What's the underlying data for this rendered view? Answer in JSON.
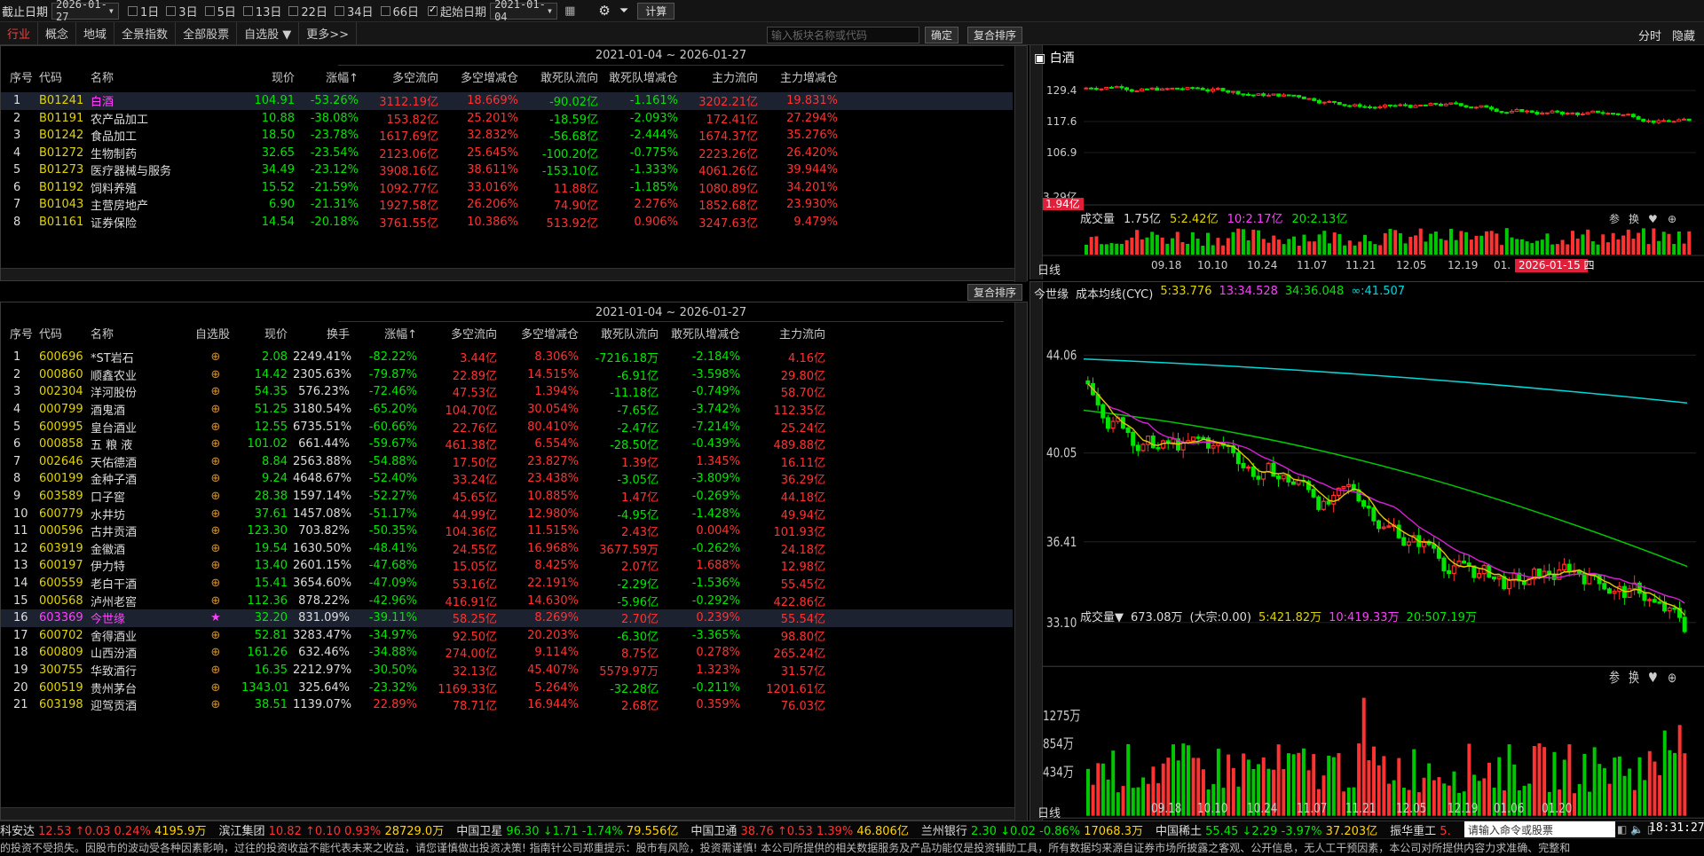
{
  "toolbar": {
    "end_date_label": "截止日期",
    "end_date": "2026-01-27",
    "periods": [
      {
        "label": "1日",
        "on": false
      },
      {
        "label": "3日",
        "on": false
      },
      {
        "label": "5日",
        "on": false
      },
      {
        "label": "13日",
        "on": false
      },
      {
        "label": "22日",
        "on": false
      },
      {
        "label": "34日",
        "on": false
      },
      {
        "label": "66日",
        "on": false
      }
    ],
    "start_label": "起始日期",
    "start_date": "2021-01-04",
    "calc_label": "计算"
  },
  "tabs": [
    {
      "label": "行业",
      "active": true
    },
    {
      "label": "概念"
    },
    {
      "label": "地域"
    },
    {
      "label": "全景指数"
    },
    {
      "label": "全部股票"
    },
    {
      "label": "自选股 ▼"
    },
    {
      "label": "更多>>"
    }
  ],
  "search_placeholder": "输入板块名称或代码",
  "confirm_label": "确定",
  "reset_sort_label": "复合排序",
  "right_header": {
    "time_share": "分时",
    "hide": "隐藏"
  },
  "top_table": {
    "date_range": "2021-01-04 ~ 2026-01-27",
    "headers": [
      "序号",
      "代码",
      "名称",
      "现价",
      "涨幅↑",
      "多空流向",
      "多空增减仓",
      "敢死队流向",
      "敢死队增减仓",
      "主力流向",
      "主力增减仓"
    ],
    "rows": [
      [
        "1",
        "B01241",
        "白酒",
        "104.91",
        "-53.26%",
        "3112.19亿",
        "18.669%",
        "-90.02亿",
        "-1.161%",
        "3202.21亿",
        "19.831%"
      ],
      [
        "2",
        "B01191",
        "农产品加工",
        "10.88",
        "-38.08%",
        "153.82亿",
        "25.201%",
        "-18.59亿",
        "-2.093%",
        "172.41亿",
        "27.294%"
      ],
      [
        "3",
        "B01242",
        "食品加工",
        "18.50",
        "-23.78%",
        "1617.69亿",
        "32.832%",
        "-56.68亿",
        "-2.444%",
        "1674.37亿",
        "35.276%"
      ],
      [
        "4",
        "B01272",
        "生物制药",
        "32.65",
        "-23.54%",
        "2123.06亿",
        "25.645%",
        "-100.20亿",
        "-0.775%",
        "2223.26亿",
        "26.420%"
      ],
      [
        "5",
        "B01273",
        "医疗器械与服务",
        "34.49",
        "-23.12%",
        "3908.16亿",
        "38.611%",
        "-153.10亿",
        "-1.333%",
        "4061.26亿",
        "39.944%"
      ],
      [
        "6",
        "B01192",
        "饲料养殖",
        "15.52",
        "-21.59%",
        "1092.77亿",
        "33.016%",
        "11.88亿",
        "-1.185%",
        "1080.89亿",
        "34.201%"
      ],
      [
        "7",
        "B01043",
        "主营房地产",
        "6.90",
        "-21.31%",
        "1927.58亿",
        "26.206%",
        "74.90亿",
        "2.276%",
        "1852.68亿",
        "23.930%"
      ],
      [
        "8",
        "B01161",
        "证券保险",
        "14.54",
        "-20.18%",
        "3761.55亿",
        "10.386%",
        "513.92亿",
        "0.906%",
        "3247.63亿",
        "9.479%"
      ]
    ]
  },
  "bottom_table": {
    "date_range": "2021-01-04 ~ 2026-01-27",
    "headers": [
      "序号",
      "代码",
      "名称",
      "自选股",
      "现价",
      "换手",
      "涨幅↑",
      "多空流向",
      "多空增减仓",
      "敢死队流向",
      "敢死队增减仓",
      "主力流向"
    ],
    "rows": [
      [
        "1",
        "600696",
        "*ST岩石",
        "2.08",
        "2249.41%",
        "-82.22%",
        "3.44亿",
        "8.306%",
        "-7216.18万",
        "-2.184%",
        "4.16亿"
      ],
      [
        "2",
        "000860",
        "顺鑫农业",
        "14.42",
        "2305.63%",
        "-79.87%",
        "22.89亿",
        "14.515%",
        "-6.91亿",
        "-3.598%",
        "29.80亿"
      ],
      [
        "3",
        "002304",
        "洋河股份",
        "54.35",
        "576.23%",
        "-72.46%",
        "47.53亿",
        "1.394%",
        "-11.18亿",
        "-0.749%",
        "58.70亿"
      ],
      [
        "4",
        "000799",
        "酒鬼酒",
        "51.25",
        "3180.54%",
        "-65.20%",
        "104.70亿",
        "30.054%",
        "-7.65亿",
        "-3.742%",
        "112.35亿"
      ],
      [
        "5",
        "600995",
        "皇台酒业",
        "12.55",
        "6735.51%",
        "-60.66%",
        "22.76亿",
        "80.410%",
        "-2.47亿",
        "-7.214%",
        "25.24亿"
      ],
      [
        "6",
        "000858",
        "五 粮 液",
        "101.02",
        "661.44%",
        "-59.67%",
        "461.38亿",
        "6.554%",
        "-28.50亿",
        "-0.439%",
        "489.88亿"
      ],
      [
        "7",
        "002646",
        "天佑德酒",
        "8.84",
        "2563.88%",
        "-54.88%",
        "17.50亿",
        "23.827%",
        "1.39亿",
        "1.345%",
        "16.11亿"
      ],
      [
        "8",
        "600199",
        "金种子酒",
        "9.24",
        "4648.67%",
        "-52.40%",
        "33.24亿",
        "23.438%",
        "-3.05亿",
        "-3.809%",
        "36.29亿"
      ],
      [
        "9",
        "603589",
        "口子窖",
        "28.38",
        "1597.14%",
        "-52.27%",
        "45.65亿",
        "10.885%",
        "1.47亿",
        "-0.269%",
        "44.18亿"
      ],
      [
        "10",
        "600779",
        "水井坊",
        "37.61",
        "1457.08%",
        "-51.17%",
        "44.99亿",
        "12.980%",
        "-4.95亿",
        "-1.428%",
        "49.94亿"
      ],
      [
        "11",
        "000596",
        "古井贡酒",
        "123.30",
        "703.82%",
        "-50.35%",
        "104.36亿",
        "11.515%",
        "2.43亿",
        "0.004%",
        "101.93亿"
      ],
      [
        "12",
        "603919",
        "金徽酒",
        "19.54",
        "1630.50%",
        "-48.41%",
        "24.55亿",
        "16.968%",
        "3677.59万",
        "-0.262%",
        "24.18亿"
      ],
      [
        "13",
        "600197",
        "伊力特",
        "13.40",
        "2601.15%",
        "-47.68%",
        "15.05亿",
        "8.425%",
        "2.07亿",
        "1.688%",
        "12.98亿"
      ],
      [
        "14",
        "600559",
        "老白干酒",
        "15.41",
        "3654.60%",
        "-47.09%",
        "53.16亿",
        "22.191%",
        "-2.29亿",
        "-1.536%",
        "55.45亿"
      ],
      [
        "15",
        "000568",
        "泸州老窖",
        "112.36",
        "878.22%",
        "-42.96%",
        "416.91亿",
        "14.630%",
        "-5.96亿",
        "-0.292%",
        "422.86亿"
      ],
      [
        "16",
        "603369",
        "今世缘",
        "32.20",
        "831.09%",
        "-39.11%",
        "58.25亿",
        "8.269%",
        "2.70亿",
        "0.239%",
        "55.54亿"
      ],
      [
        "17",
        "600702",
        "舍得酒业",
        "52.81",
        "3283.47%",
        "-34.97%",
        "92.50亿",
        "20.203%",
        "-6.30亿",
        "-3.365%",
        "98.80亿"
      ],
      [
        "18",
        "600809",
        "山西汾酒",
        "161.26",
        "632.46%",
        "-34.88%",
        "274.00亿",
        "9.114%",
        "8.75亿",
        "0.278%",
        "265.24亿"
      ],
      [
        "19",
        "300755",
        "华致酒行",
        "16.35",
        "2212.97%",
        "-30.50%",
        "32.13亿",
        "45.407%",
        "5579.97万",
        "1.323%",
        "31.57亿"
      ],
      [
        "20",
        "600519",
        "贵州茅台",
        "1343.01",
        "325.64%",
        "-23.32%",
        "1169.33亿",
        "5.264%",
        "-32.28亿",
        "-0.211%",
        "1201.61亿"
      ],
      [
        "21",
        "603198",
        "迎驾贡酒",
        "38.51",
        "1139.07%",
        "22.89%",
        "78.71亿",
        "16.944%",
        "2.68亿",
        "0.359%",
        "76.03亿"
      ]
    ]
  },
  "chart1": {
    "title": "白酒",
    "price_ticks": [
      "129.4",
      "117.6",
      "106.9"
    ],
    "vol_label": "成交量",
    "vol_val": "1.75亿",
    "vol_ma5": "5:2.42亿",
    "vol_ma10": "10:2.17亿",
    "vol_ma20": "20:2.13亿",
    "vol_tick": "3.29亿",
    "vol_cur": "1.94亿",
    "period": "日线",
    "x_ticks": [
      "09.18",
      "10.10",
      "10.24",
      "11.07",
      "11.21",
      "12.05",
      "12.19",
      "01."
    ],
    "date_badge": "2026-01-15 四",
    "ctrl": [
      "参",
      "换",
      "♥",
      "⊕"
    ]
  },
  "chart2": {
    "title": "今世缘",
    "ind_name": "成本均线(CYC)",
    "ma5": "5:33.776",
    "ma13": "13:34.528",
    "ma34": "34:36.048",
    "mainf": "∞:41.507",
    "price_ticks": [
      "44.06",
      "40.05",
      "36.41",
      "33.10"
    ],
    "vol_label": "成交量▼",
    "vol_val": "673.08万",
    "vol_extra": "(大宗:0.00)",
    "vol_ma5": "5:421.82万",
    "vol_ma10": "10:419.33万",
    "vol_ma20": "20:507.19万",
    "vol_ticks": [
      "1275万",
      "854万",
      "434万"
    ],
    "period": "日线",
    "x_ticks": [
      "09.18",
      "10.10",
      "10.24",
      "11.07",
      "11.21",
      "12.05",
      "12.19",
      "01.06",
      "01.20"
    ],
    "ctrl": [
      "参",
      "换",
      "♥",
      "⊕"
    ]
  },
  "ticker": [
    {
      "name": "科安达",
      "price": "12.53",
      "arrow": "↑",
      "chg": "0.03",
      "pct": "0.24%",
      "amt": "4195.9万",
      "up": true
    },
    {
      "name": "滨江集团",
      "price": "10.82",
      "arrow": "↑",
      "chg": "0.10",
      "pct": "0.93%",
      "amt": "28729.0万",
      "up": true
    },
    {
      "name": "中国卫星",
      "price": "96.30",
      "arrow": "↓",
      "chg": "1.71",
      "pct": "-1.74%",
      "amt": "79.556亿",
      "up": false
    },
    {
      "name": "中国卫通",
      "price": "38.76",
      "arrow": "↑",
      "chg": "0.53",
      "pct": "1.39%",
      "amt": "46.806亿",
      "up": true
    },
    {
      "name": "兰州银行",
      "price": "2.30",
      "arrow": "↓",
      "chg": "0.02",
      "pct": "-0.86%",
      "amt": "17068.3万",
      "up": false
    },
    {
      "name": "中国稀土",
      "price": "55.45",
      "arrow": "↓",
      "chg": "2.29",
      "pct": "-3.97%",
      "amt": "37.203亿",
      "up": false
    },
    {
      "name": "振华重工",
      "price": "5.",
      "arrow": "",
      "chg": "",
      "pct": "",
      "amt": "",
      "up": true
    }
  ],
  "cmd_placeholder": "请输入命令或股票",
  "clock": "18:31:27",
  "disclaimer": "的投资不受损失。因股市的波动受各种因素影响，过往的投资收益不能代表未来之收益，请您谨慎做出投资决策!            指南针公司郑重提示：股市有风险，投资需谨慎! 本公司所提供的相关数据服务及产品功能仅是投资辅助工具，所有数据均来源自证券市场所披露之客观、公开信息，无人工干预因素，本公司对所提供内容力求准确、完整和"
}
